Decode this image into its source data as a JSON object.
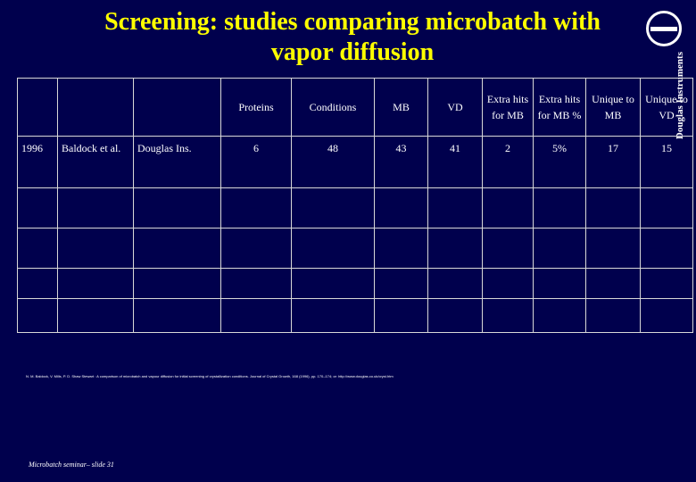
{
  "slide": {
    "title_line1": "Screening: studies comparing microbatch with",
    "title_line2": "vapor diffusion",
    "logo_text": "Douglas Instruments",
    "footer": "Microbatch seminar– slide 31",
    "reference": "N. M. Baldock, V. Mills, P. D. Shaw Stewart : A comparison of microbatch and vapour diffusion for initial screening of crystallization conditions. Journal of Crystal Growth, 168 (1996), pp. 170–174; or: http://www.douglas.co.uk/cryst.htm"
  },
  "table": {
    "headers": {
      "proteins": "Proteins",
      "conditions": "Conditions",
      "mb": "MB",
      "vd": "VD",
      "extra_hits_mb": "Extra hits for MB",
      "extra_hits_mb_pct": "Extra hits for MB %",
      "unique_mb": "Unique to MB",
      "unique_vd": "Unique to VD"
    },
    "rows": [
      {
        "year": "1996",
        "authors": "Baldock et al.",
        "group": "Douglas Ins.",
        "proteins": "6",
        "conditions": "48",
        "mb": "43",
        "vd": "41",
        "extra_hits_mb": "2",
        "extra_hits_mb_pct": "5%",
        "unique_mb": "17",
        "unique_vd": "15"
      }
    ]
  }
}
